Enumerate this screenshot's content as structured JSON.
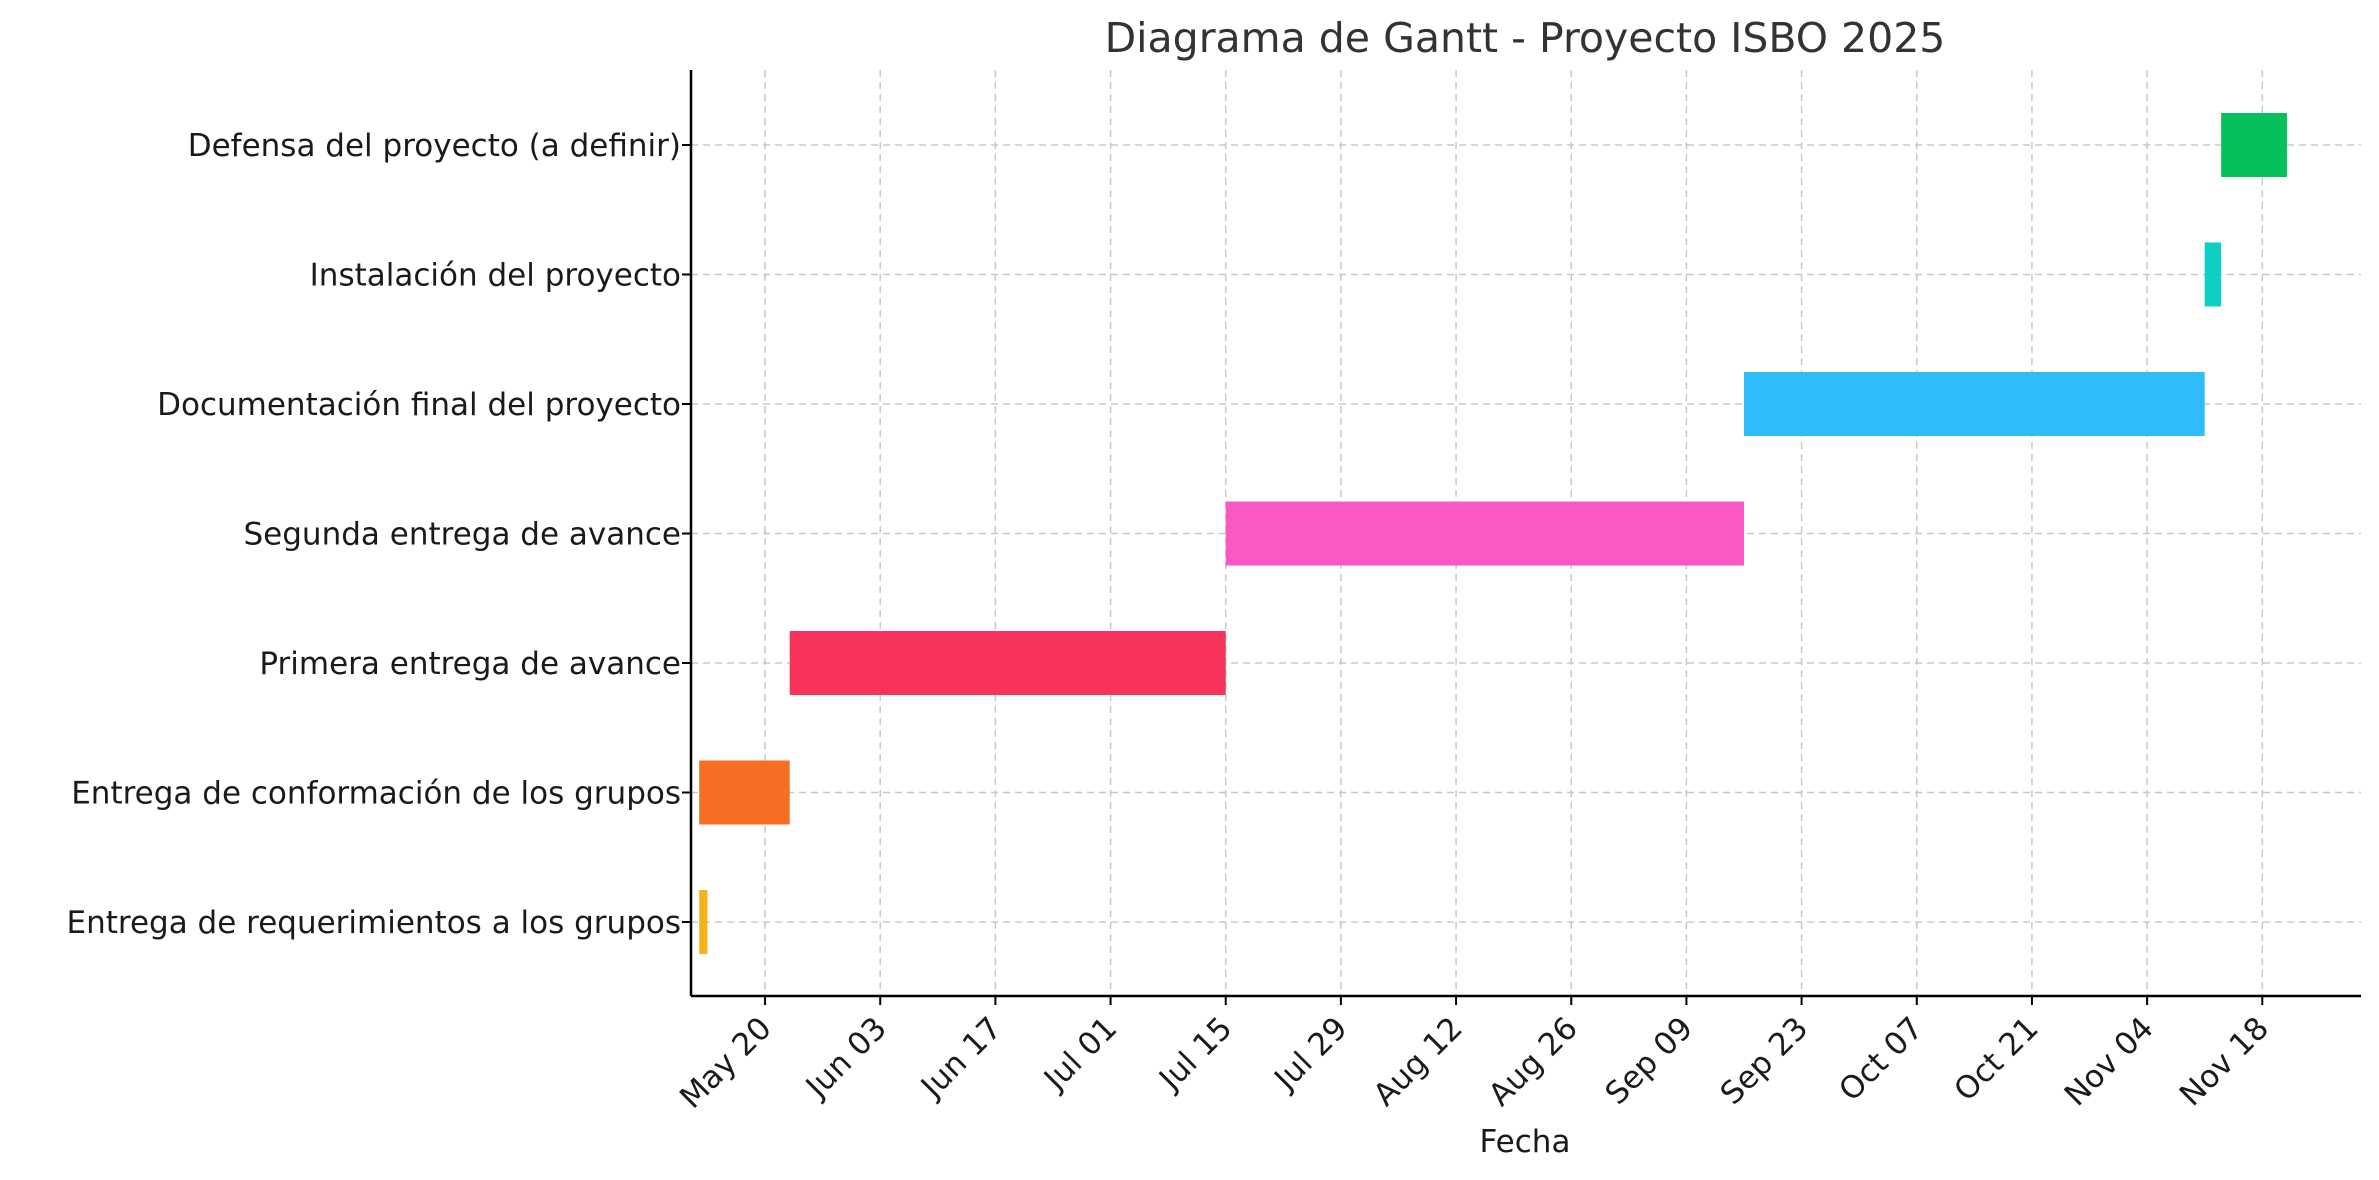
{
  "chart_data": {
    "type": "gantt",
    "title": "Diagrama de Gantt - Proyecto ISBO 2025",
    "xlabel": "Fecha",
    "ylabel": "",
    "xlim": [
      "2025-05-11",
      "2025-11-30"
    ],
    "x_ticks": [
      {
        "date": "2025-05-20",
        "label": "May 20"
      },
      {
        "date": "2025-06-03",
        "label": "Jun 03"
      },
      {
        "date": "2025-06-17",
        "label": "Jun 17"
      },
      {
        "date": "2025-07-01",
        "label": "Jul 01"
      },
      {
        "date": "2025-07-15",
        "label": "Jul 15"
      },
      {
        "date": "2025-07-29",
        "label": "Jul 29"
      },
      {
        "date": "2025-08-12",
        "label": "Aug 12"
      },
      {
        "date": "2025-08-26",
        "label": "Aug 26"
      },
      {
        "date": "2025-09-09",
        "label": "Sep 09"
      },
      {
        "date": "2025-09-23",
        "label": "Sep 23"
      },
      {
        "date": "2025-10-07",
        "label": "Oct 07"
      },
      {
        "date": "2025-10-21",
        "label": "Oct 21"
      },
      {
        "date": "2025-11-04",
        "label": "Nov 04"
      },
      {
        "date": "2025-11-18",
        "label": "Nov 18"
      }
    ],
    "grid": true,
    "tasks": [
      {
        "label": "Entrega de requerimientos a los grupos",
        "start": "2025-05-12",
        "end": "2025-05-13",
        "color": "#f5b21c"
      },
      {
        "label": "Entrega de conformación de los grupos",
        "start": "2025-05-12",
        "end": "2025-05-23",
        "color": "#f66d24"
      },
      {
        "label": "Primera entrega de avance",
        "start": "2025-05-23",
        "end": "2025-07-15",
        "color": "#f7335b"
      },
      {
        "label": "Segunda entrega de avance",
        "start": "2025-07-15",
        "end": "2025-09-16",
        "color": "#fa59c3"
      },
      {
        "label": "Documentación final del proyecto",
        "start": "2025-09-16",
        "end": "2025-11-11",
        "color": "#2ebdfa"
      },
      {
        "label": "Instalación del proyecto",
        "start": "2025-11-11",
        "end": "2025-11-13",
        "color": "#0ecfc4"
      },
      {
        "label": "Defensa del proyecto (a definir)",
        "start": "2025-11-13",
        "end": "2025-11-21",
        "color": "#05c15b"
      }
    ]
  }
}
